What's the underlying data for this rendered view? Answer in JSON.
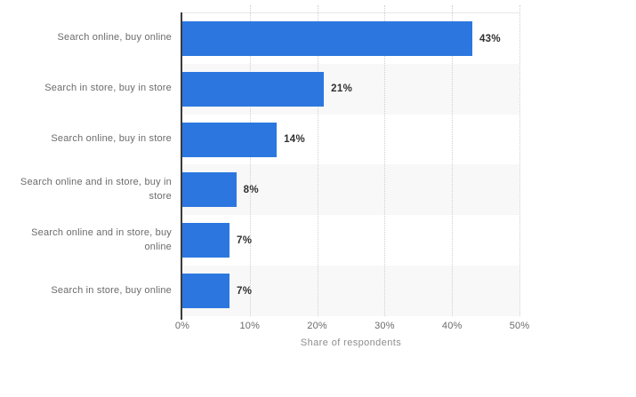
{
  "chart_data": {
    "type": "bar",
    "orientation": "horizontal",
    "title": "",
    "xlabel": "Share of respondents",
    "ylabel": "",
    "xlim": [
      0,
      50
    ],
    "x_ticks": [
      "0%",
      "10%",
      "20%",
      "30%",
      "40%",
      "50%"
    ],
    "grid": "vertical dotted gridlines every 10%",
    "legend": "none",
    "categories": [
      "Search online, buy online",
      "Search in store, buy in store",
      "Search online, buy in store",
      "Search online and in store, buy in\nstore",
      "Search online and in store, buy online",
      "Search in store, buy online"
    ],
    "values": [
      43,
      21,
      14,
      8,
      7,
      7
    ],
    "value_labels": [
      "43%",
      "21%",
      "14%",
      "8%",
      "7%",
      "7%"
    ],
    "row_band_pattern": "even rows shaded",
    "colors": {
      "bar": "#2C77DF",
      "row_band": "#F8F8F8",
      "gridline": "#CFCFCF",
      "axis_line": "#3B3B3B",
      "category_label": "#6B6B6B",
      "value_label": "#303030",
      "tick_label": "#6B6B6B",
      "axis_title": "#8D8D8D"
    }
  }
}
